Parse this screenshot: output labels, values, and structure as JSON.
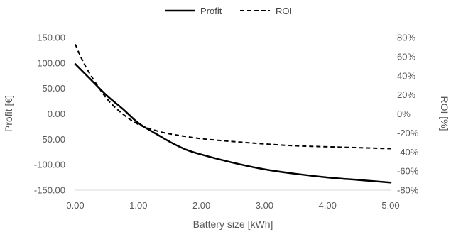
{
  "chart_data": {
    "type": "line",
    "xlabel": "Battery size [kWh]",
    "ylabel": "Profit [€]",
    "y2label": "ROI [%]",
    "xlim": [
      0,
      5
    ],
    "ylim": [
      -150,
      150
    ],
    "y2lim": [
      -80,
      80
    ],
    "x_ticks": [
      "0.00",
      "1.00",
      "2.00",
      "3.00",
      "4.00",
      "5.00"
    ],
    "y_ticks": [
      "150.00",
      "100.00",
      "50.00",
      "0.00",
      "-50.00",
      "-100.00",
      "-150.00"
    ],
    "y2_ticks": [
      "80%",
      "60%",
      "40%",
      "20%",
      "0%",
      "-20%",
      "-40%",
      "-60%",
      "-80%"
    ],
    "grid": false,
    "legend_position": "top",
    "series": [
      {
        "name": "Profit",
        "axis": "left",
        "style": "solid",
        "color": "#000000",
        "x": [
          0,
          0.25,
          0.5,
          0.75,
          1.0,
          1.25,
          1.5,
          1.75,
          2.0,
          2.5,
          3.0,
          3.5,
          4.0,
          4.5,
          5.0
        ],
        "y": [
          98,
          67,
          36,
          10,
          -18,
          -37,
          -55,
          -70,
          -80,
          -96,
          -109,
          -118,
          -125,
          -130,
          -135
        ]
      },
      {
        "name": "ROI",
        "axis": "right",
        "style": "dashed",
        "color": "#000000",
        "x": [
          0,
          0.1,
          0.25,
          0.5,
          0.75,
          1.0,
          1.25,
          1.5,
          2.0,
          2.5,
          3.0,
          3.5,
          4.0,
          4.5,
          5.0
        ],
        "y": [
          73,
          58,
          40,
          16,
          0,
          -11,
          -17,
          -21,
          -26,
          -29,
          -31.5,
          -33.5,
          -34.5,
          -35.5,
          -36.5
        ]
      }
    ]
  }
}
